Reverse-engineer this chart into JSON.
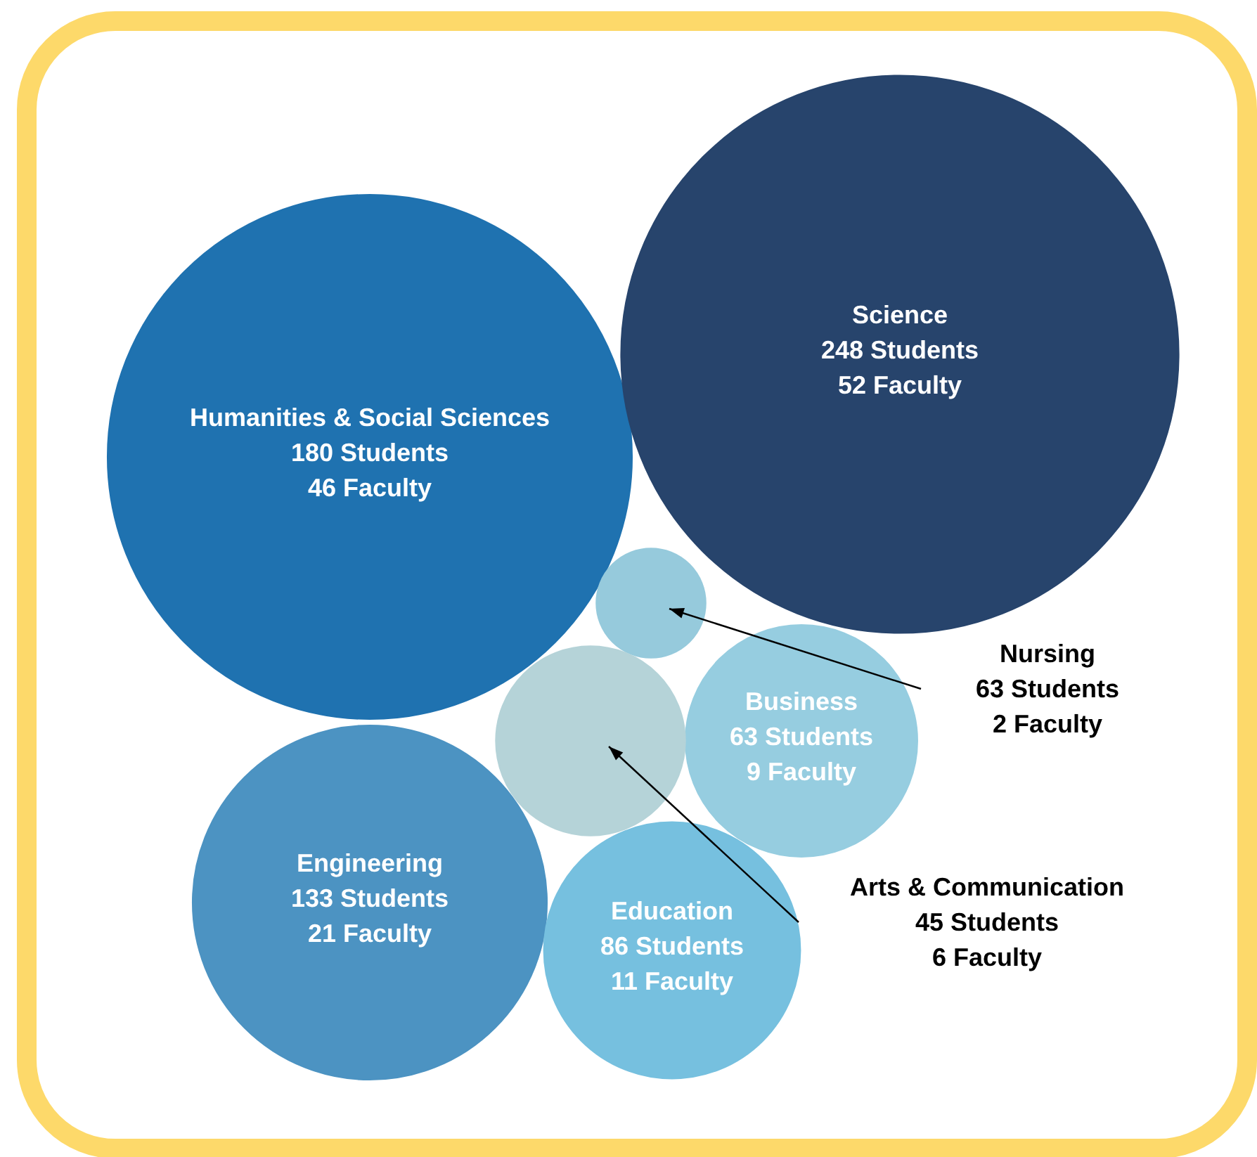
{
  "chart_data": {
    "type": "other",
    "categories": [
      "Humanities & Social Sciences",
      "Science",
      "Nursing",
      "Business",
      "Arts & Communication",
      "Engineering",
      "Education"
    ],
    "series": [
      {
        "name": "Students",
        "values": [
          180,
          248,
          63,
          63,
          45,
          133,
          86
        ],
        "colors": [
          "#1f72b0",
          "#27446c",
          "#96cadc",
          "#96cde0",
          "#b5d3d8",
          "#4c93c2",
          "#76c0df"
        ]
      },
      {
        "name": "Faculty",
        "values": [
          46,
          52,
          2,
          9,
          6,
          21,
          11
        ],
        "colors": [
          "#1f72b0",
          "#27446c",
          "#96cadc",
          "#96cde0",
          "#b5d3d8",
          "#4c93c2",
          "#76c0df"
        ]
      }
    ],
    "data_labels": true
  }
}
